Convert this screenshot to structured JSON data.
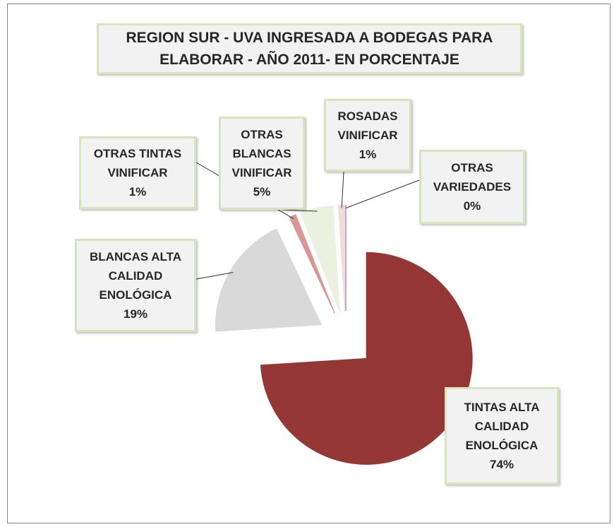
{
  "chart_data": {
    "type": "pie",
    "title": "REGION SUR - UVA INGRESADA A BODEGAS PARA ELABORAR - AÑO 2011- EN PORCENTAJE",
    "categories": [
      "TINTAS ALTA CALIDAD ENOLÓGICA",
      "BLANCAS ALTA CALIDAD ENOLÓGICA",
      "OTRAS TINTAS VINIFICAR",
      "OTRAS BLANCAS VINIFICAR",
      "ROSADAS VINIFICAR",
      "OTRAS VARIEDADES"
    ],
    "values": [
      74,
      19,
      1,
      5,
      1,
      0
    ],
    "value_labels": [
      "74%",
      "19%",
      "1%",
      "5%",
      "1%",
      "0%"
    ],
    "colors": [
      "#953735",
      "#d9d9d9",
      "#d99694",
      "#ebf1de",
      "#f2dcdb",
      "#8064a2"
    ]
  }
}
